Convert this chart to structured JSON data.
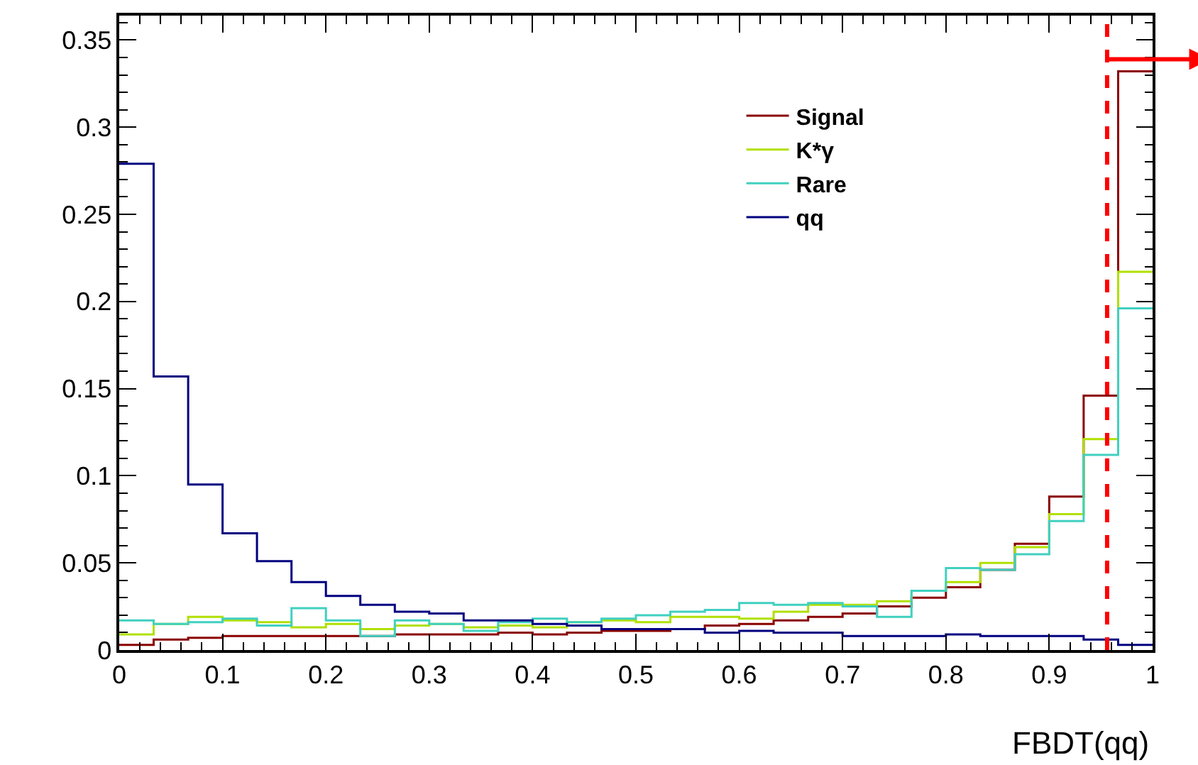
{
  "chart_data": {
    "type": "histogram",
    "xlabel": "FBDT(qq)",
    "bins": [
      0,
      0.0333,
      0.0667,
      0.1,
      0.1333,
      0.1667,
      0.2,
      0.2333,
      0.2667,
      0.3,
      0.3333,
      0.3667,
      0.4,
      0.4333,
      0.4667,
      0.5,
      0.5333,
      0.5667,
      0.6,
      0.6333,
      0.6667,
      0.7,
      0.7333,
      0.7667,
      0.8,
      0.8333,
      0.8667,
      0.9,
      0.9333,
      0.9667,
      1
    ],
    "series": [
      {
        "name": "Signal",
        "color": "#8b0000",
        "values": [
          0.003,
          0.006,
          0.007,
          0.008,
          0.008,
          0.008,
          0.008,
          0.008,
          0.009,
          0.009,
          0.009,
          0.01,
          0.009,
          0.01,
          0.011,
          0.011,
          0.012,
          0.014,
          0.015,
          0.017,
          0.019,
          0.021,
          0.025,
          0.03,
          0.036,
          0.046,
          0.061,
          0.088,
          0.146,
          0.332
        ]
      },
      {
        "name": "K*γ",
        "color": "#b0e000",
        "values": [
          0.009,
          0.015,
          0.019,
          0.017,
          0.016,
          0.013,
          0.015,
          0.012,
          0.014,
          0.015,
          0.013,
          0.014,
          0.013,
          0.016,
          0.017,
          0.016,
          0.019,
          0.019,
          0.018,
          0.022,
          0.026,
          0.026,
          0.028,
          0.034,
          0.039,
          0.05,
          0.059,
          0.078,
          0.121,
          0.217
        ]
      },
      {
        "name": "Rare",
        "color": "#40d0c0",
        "values": [
          0.017,
          0.015,
          0.016,
          0.018,
          0.014,
          0.024,
          0.017,
          0.008,
          0.017,
          0.015,
          0.011,
          0.016,
          0.018,
          0.016,
          0.018,
          0.02,
          0.022,
          0.023,
          0.027,
          0.026,
          0.027,
          0.025,
          0.019,
          0.034,
          0.047,
          0.046,
          0.055,
          0.074,
          0.112,
          0.196
        ]
      },
      {
        "name": "qq",
        "color": "#000080",
        "values": [
          0.279,
          0.157,
          0.095,
          0.067,
          0.051,
          0.039,
          0.031,
          0.026,
          0.022,
          0.021,
          0.017,
          0.017,
          0.015,
          0.014,
          0.012,
          0.012,
          0.012,
          0.01,
          0.011,
          0.01,
          0.01,
          0.008,
          0.008,
          0.008,
          0.009,
          0.008,
          0.008,
          0.008,
          0.006,
          0.003
        ]
      }
    ],
    "xlim": [
      0,
      1
    ],
    "ylim": [
      0,
      0.364
    ],
    "xticks": [
      0,
      0.1,
      0.2,
      0.3,
      0.4,
      0.5,
      0.6,
      0.7,
      0.8,
      0.9,
      1
    ],
    "yticks": [
      0,
      0.05,
      0.1,
      0.15,
      0.2,
      0.25,
      0.3,
      0.35
    ],
    "ref_lines": [
      {
        "axis": "x",
        "value": 0.956,
        "color": "#ff0000",
        "line_style": "dashed"
      }
    ],
    "legend": "top right"
  }
}
